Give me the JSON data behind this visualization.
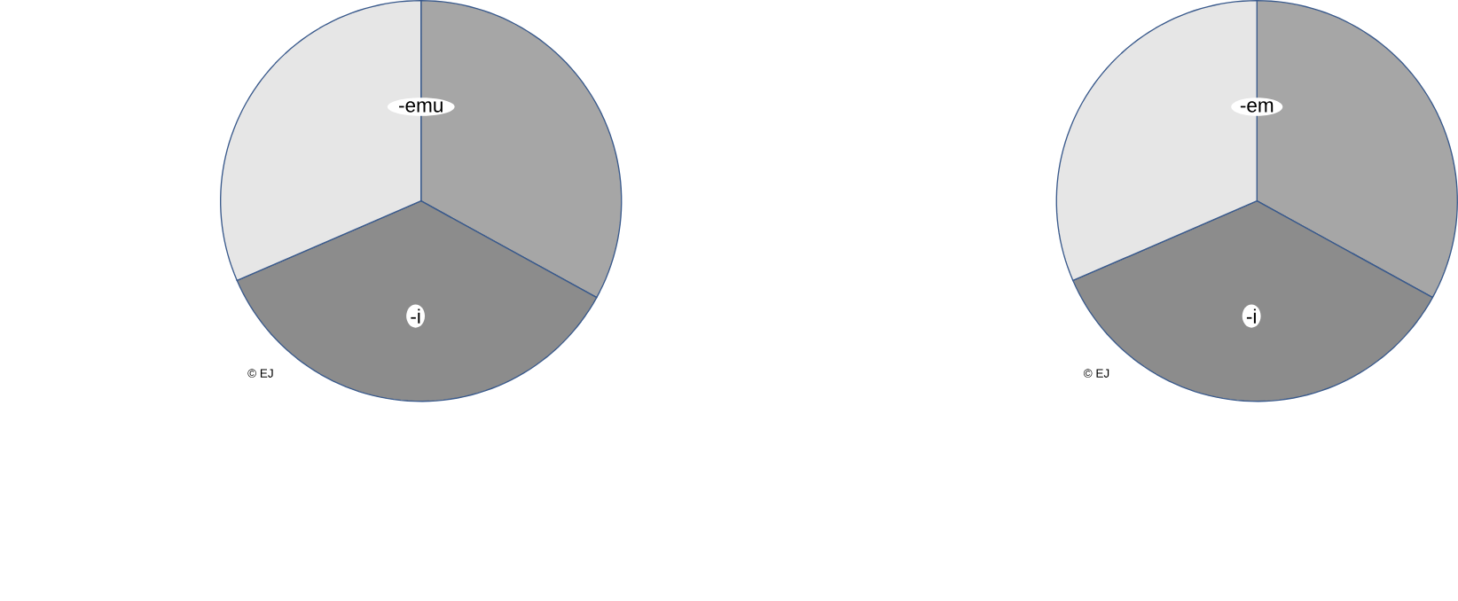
{
  "chart_data": [
    {
      "type": "pie",
      "categories": [
        null,
        "-i",
        null
      ],
      "values": [
        33,
        35.5,
        31.5
      ],
      "colors": [
        "#a6a6a6",
        "#8c8c8c",
        "#e6e6e6"
      ],
      "annotations": [
        "-emu",
        "© EJ"
      ]
    },
    {
      "type": "pie",
      "categories": [
        null,
        "-i",
        null
      ],
      "values": [
        33,
        35.5,
        31.5
      ],
      "colors": [
        "#a6a6a6",
        "#8c8c8c",
        "#e6e6e6"
      ],
      "annotations": [
        "-em",
        "© EJ"
      ]
    }
  ]
}
